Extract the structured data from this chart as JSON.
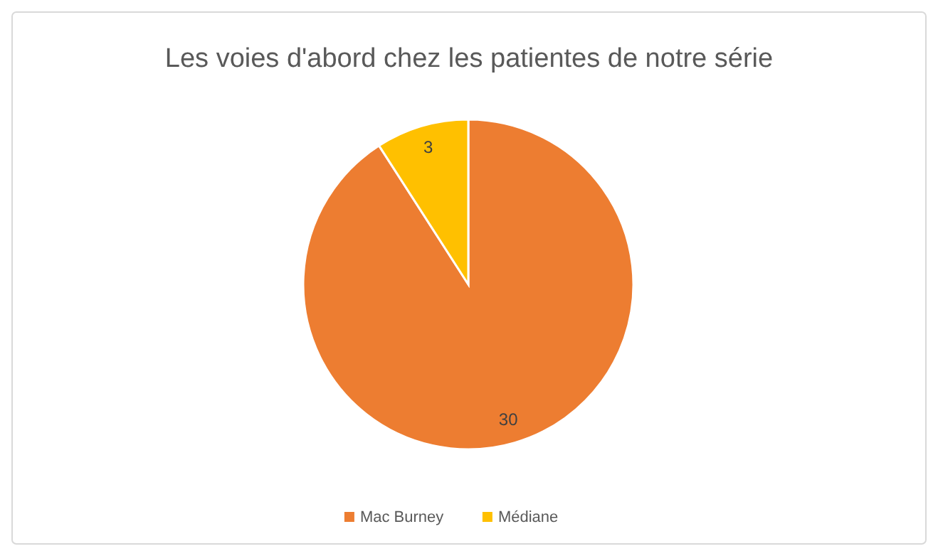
{
  "chart_data": {
    "type": "pie",
    "title": "Les voies d'abord chez les patientes de notre série",
    "categories": [
      "Mac Burney",
      "Médiane"
    ],
    "values": [
      30,
      3
    ],
    "colors": [
      "#ed7d31",
      "#ffc000"
    ],
    "data_labels": true,
    "legend": "bottom"
  }
}
